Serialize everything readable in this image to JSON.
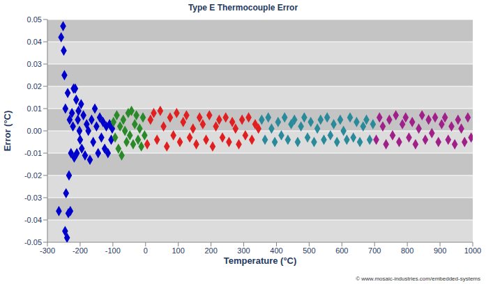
{
  "chart_data": {
    "type": "scatter",
    "title": "Type E Thermocouple Error",
    "x_label": "Temperature (°C)",
    "y_label": "Error (°C)",
    "annotations": [
      "© www.mosaic-industries.com/embedded-systems"
    ],
    "xlim": [
      -300,
      1000
    ],
    "xticks": [
      -300,
      -200,
      -100,
      0,
      100,
      200,
      300,
      400,
      500,
      600,
      700,
      800,
      900,
      1000
    ],
    "ylim": [
      -0.05,
      0.05
    ],
    "yticks": [
      -0.05,
      -0.04,
      -0.03,
      -0.02,
      -0.01,
      {
        "value": 0,
        "label": "0.00"
      },
      0.01,
      0.02,
      0.03,
      0.04,
      0.05
    ],
    "grid": true,
    "marker": "diamond",
    "series": [
      {
        "color": "#0000cc",
        "x": [
          -265,
          -258,
          -252,
          -250,
          -248,
          -246,
          -245,
          -243,
          -240,
          -238,
          -236,
          -234,
          -232,
          -230,
          -228,
          -225,
          -222,
          -220,
          -218,
          -215,
          -212,
          -210,
          -207,
          -205,
          -202,
          -200,
          -197,
          -195,
          -190,
          -185,
          -180,
          -175,
          -170,
          -165,
          -160,
          -155,
          -150,
          -145,
          -140,
          -135,
          -130,
          -125,
          -120,
          -115,
          -110,
          -105,
          -102
        ],
        "values": [
          -0.036,
          0.042,
          0.047,
          0.036,
          0.025,
          -0.045,
          0.01,
          -0.028,
          -0.048,
          0.017,
          -0.037,
          -0.02,
          0.005,
          -0.036,
          -0.01,
          0.008,
          0.002,
          0.019,
          -0.012,
          0.019,
          0.014,
          -0.01,
          0.005,
          0.009,
          0.0,
          -0.004,
          0.012,
          -0.008,
          0.007,
          -0.011,
          0.003,
          0.0,
          -0.013,
          0.005,
          -0.005,
          0.01,
          0.002,
          -0.01,
          0.006,
          -0.003,
          0.004,
          -0.008,
          0.002,
          -0.01,
          0.003,
          -0.004,
          0.001
        ]
      },
      {
        "color": "#2a8a2a",
        "x": [
          -98,
          -93,
          -88,
          -83,
          -78,
          -73,
          -68,
          -63,
          -58,
          -53,
          -48,
          -43,
          -38,
          -33,
          -28,
          -23,
          -18,
          -13,
          -8,
          -3
        ],
        "values": [
          0.004,
          -0.003,
          0.007,
          -0.008,
          0.002,
          -0.011,
          0.005,
          0.0,
          -0.005,
          0.008,
          -0.002,
          0.009,
          -0.006,
          0.003,
          0.007,
          -0.004,
          0.001,
          -0.007,
          0.006,
          -0.002
        ]
      },
      {
        "color": "#e02020",
        "x": [
          5,
          15,
          25,
          35,
          45,
          55,
          65,
          75,
          85,
          95,
          105,
          115,
          125,
          135,
          145,
          155,
          165,
          175,
          185,
          195,
          205,
          215,
          225,
          235,
          245,
          255,
          265,
          275,
          285,
          295,
          305,
          315,
          325,
          335,
          345
        ],
        "values": [
          -0.006,
          0.005,
          0.008,
          -0.004,
          0.009,
          0.002,
          -0.007,
          0.006,
          -0.002,
          0.008,
          -0.005,
          0.004,
          0.007,
          -0.003,
          0.001,
          -0.006,
          0.006,
          0.003,
          -0.004,
          0.007,
          -0.007,
          0.002,
          0.005,
          -0.003,
          0.006,
          -0.005,
          0.004,
          0.001,
          -0.006,
          0.005,
          -0.002,
          0.006,
          -0.004,
          0.003,
          0.001
        ]
      },
      {
        "color": "#2a8a9a",
        "x": [
          355,
          365,
          375,
          385,
          395,
          405,
          415,
          425,
          435,
          445,
          455,
          465,
          475,
          485,
          495,
          505,
          515,
          525,
          535,
          545,
          555,
          565,
          575,
          585,
          595,
          605,
          615,
          625,
          635,
          645,
          655,
          665,
          675,
          685,
          695
        ],
        "values": [
          0.005,
          -0.004,
          0.006,
          0.001,
          -0.005,
          0.004,
          -0.002,
          0.006,
          -0.004,
          0.003,
          0.005,
          -0.005,
          0.002,
          0.006,
          -0.003,
          0.004,
          -0.005,
          0.001,
          0.005,
          -0.004,
          0.006,
          -0.002,
          0.003,
          -0.005,
          0.005,
          0.0,
          -0.004,
          0.006,
          -0.003,
          0.004,
          -0.005,
          0.002,
          0.005,
          -0.004,
          0.003
        ]
      },
      {
        "color": "#a0208a",
        "x": [
          705,
          715,
          725,
          735,
          745,
          755,
          765,
          775,
          785,
          795,
          805,
          815,
          825,
          835,
          845,
          855,
          865,
          875,
          885,
          895,
          905,
          915,
          925,
          935,
          945,
          955,
          965,
          975,
          985,
          995
        ],
        "values": [
          -0.004,
          0.006,
          0.002,
          -0.006,
          0.005,
          -0.002,
          0.007,
          -0.005,
          0.003,
          0.006,
          -0.003,
          0.004,
          -0.006,
          0.001,
          0.007,
          -0.004,
          0.005,
          -0.001,
          0.006,
          -0.005,
          0.003,
          0.006,
          -0.004,
          0.002,
          -0.006,
          0.005,
          0.001,
          -0.005,
          0.006,
          -0.003
        ]
      }
    ]
  }
}
